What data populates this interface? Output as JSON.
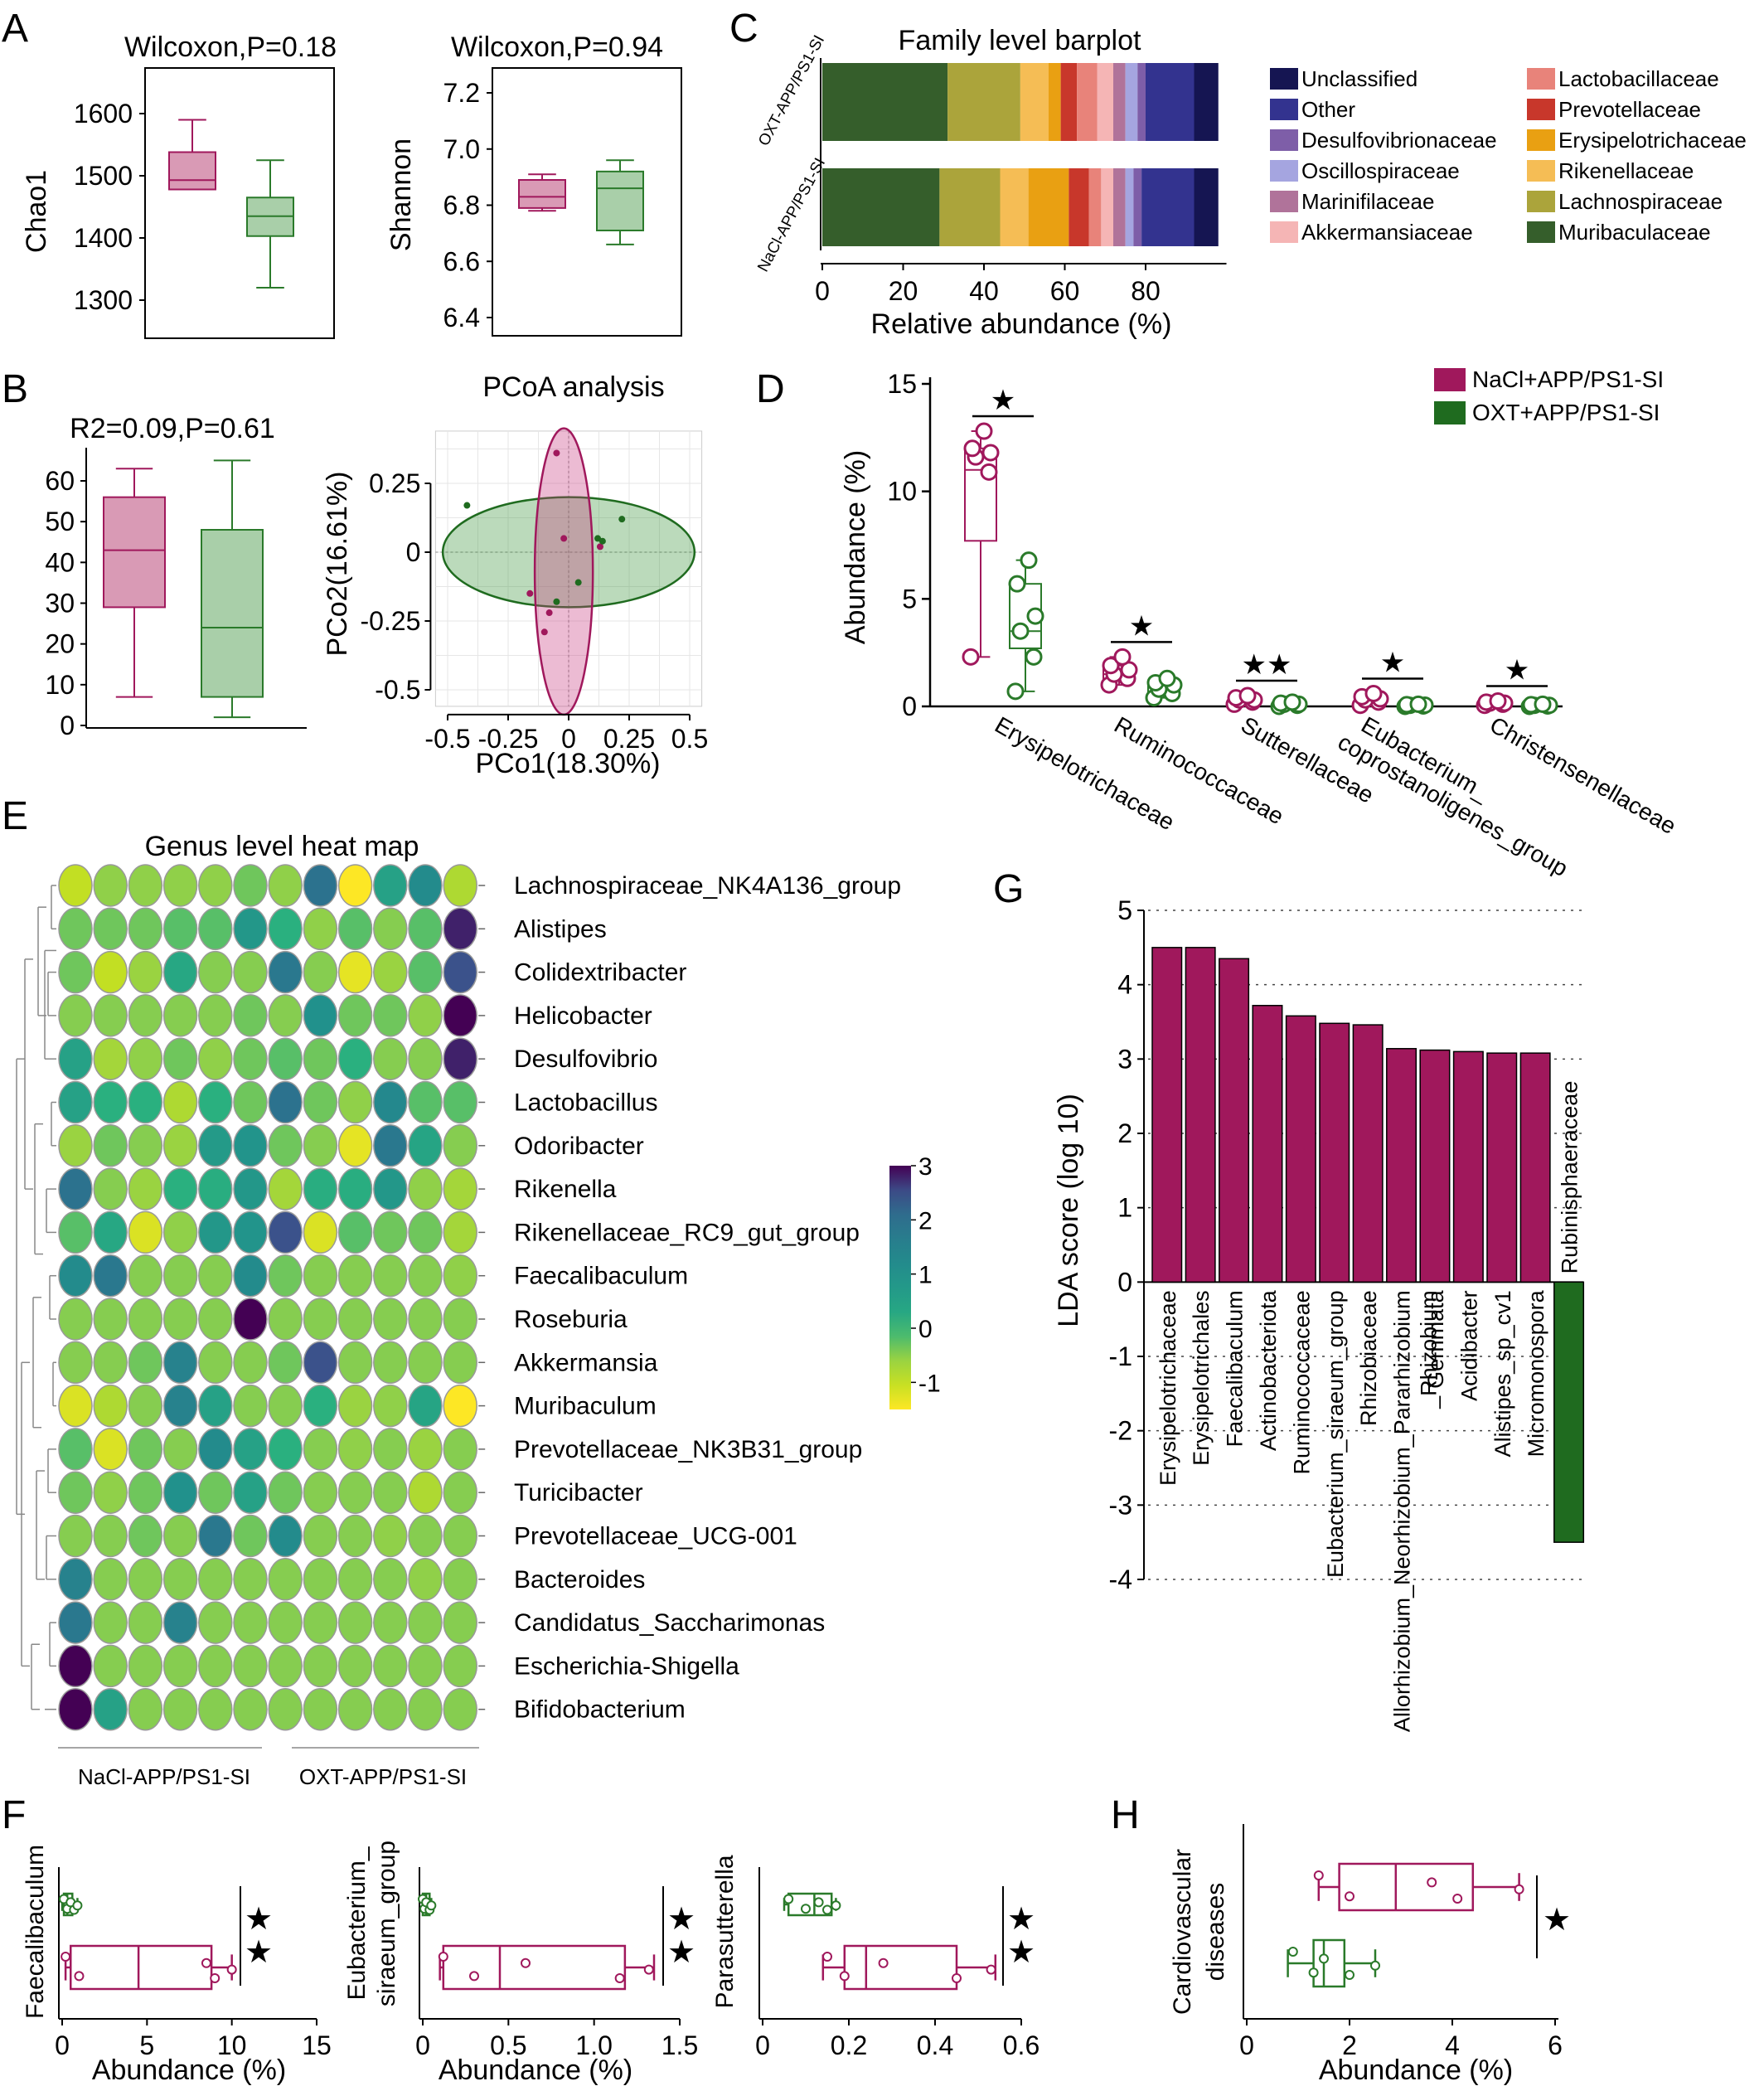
{
  "colors": {
    "nacl": "#a0185c",
    "nacl_fill": "#d99ab5",
    "oxt": "#2a7a2a",
    "oxt_fill": "#a9cfa9",
    "oxt_dark": "#1f6b1f"
  },
  "panelA": {
    "letter": "A",
    "chao1": {
      "title": "Wilcoxon,P=0.18",
      "ylabel": "Chao1",
      "ticks": [
        "1300",
        "1400",
        "1500",
        "1600"
      ],
      "ylim": [
        1250,
        1660
      ],
      "boxes": [
        {
          "group": "NaCl",
          "min": 1478,
          "q1": 1478,
          "median": 1493,
          "q3": 1538,
          "max": 1590
        },
        {
          "group": "OXT",
          "min": 1320,
          "q1": 1403,
          "median": 1435,
          "q3": 1465,
          "max": 1525
        }
      ]
    },
    "shannon": {
      "title": "Wilcoxon,P=0.94",
      "ylabel": "Shannon",
      "ticks": [
        "6.4",
        "6.6",
        "6.8",
        "7.0",
        "7.2"
      ],
      "ylim": [
        6.33,
        7.28
      ],
      "boxes": [
        {
          "group": "NaCl",
          "min": 6.78,
          "q1": 6.79,
          "median": 6.83,
          "q3": 6.89,
          "max": 6.91
        },
        {
          "group": "OXT",
          "min": 6.66,
          "q1": 6.71,
          "median": 6.86,
          "q3": 6.92,
          "max": 6.96
        }
      ]
    }
  },
  "panelB": {
    "letter": "B",
    "box": {
      "title": "R2=0.09,P=0.61",
      "ticks": [
        "0",
        "10",
        "20",
        "30",
        "40",
        "50",
        "60"
      ],
      "ylim": [
        0,
        68
      ],
      "boxes": [
        {
          "group": "NaCl",
          "min": 7,
          "q1": 29,
          "median": 43,
          "q3": 56,
          "max": 63
        },
        {
          "group": "OXT",
          "min": 2,
          "q1": 7,
          "median": 24,
          "q3": 48,
          "max": 65
        }
      ]
    },
    "pcoa": {
      "title": "PCoA analysis",
      "xlabel": "PCo1(18.30%)",
      "ylabel": "PCo2(16.61%)",
      "xticks": [
        "-0.5",
        "-0.25",
        "0",
        "0.25",
        "0.5"
      ],
      "yticks": [
        "0.25",
        "0",
        "-0.25",
        "-0.5"
      ],
      "xlim": [
        -0.55,
        0.55
      ],
      "ylim": [
        -0.56,
        0.44
      ],
      "nacl_points": [
        [
          -0.05,
          0.36
        ],
        [
          -0.02,
          0.05
        ],
        [
          0.13,
          0.02
        ],
        [
          -0.16,
          -0.15
        ],
        [
          -0.08,
          -0.22
        ],
        [
          -0.1,
          -0.29
        ]
      ],
      "oxt_points": [
        [
          -0.42,
          0.17
        ],
        [
          0.22,
          0.12
        ],
        [
          0.12,
          0.05
        ],
        [
          0.14,
          0.04
        ],
        [
          0.04,
          -0.11
        ],
        [
          -0.05,
          -0.18
        ]
      ]
    }
  },
  "panelC": {
    "letter": "C",
    "chart_data": {
      "type": "bar",
      "title": "Family level barplot",
      "xlabel": "Relative abundance (%)",
      "xticks": [
        "0",
        "20",
        "40",
        "60",
        "80"
      ],
      "xlim": [
        0,
        100
      ],
      "categories": [
        "OXT-APP/PS1-SI",
        "NaCl-APP/PS1-SI"
      ],
      "series": [
        {
          "name": "Muribaculaceae",
          "color": "#355e2b",
          "values": [
            31,
            29
          ]
        },
        {
          "name": "Lachnospiraceae",
          "color": "#aba43b",
          "values": [
            18,
            15
          ]
        },
        {
          "name": "Rikenellaceae",
          "color": "#f5bd55",
          "values": [
            7,
            7
          ]
        },
        {
          "name": "Erysipelotrichaceae",
          "color": "#e9a012",
          "values": [
            3,
            10
          ]
        },
        {
          "name": "Prevotellaceae",
          "color": "#c8372b",
          "values": [
            4,
            5
          ]
        },
        {
          "name": "Lactobacillaceae",
          "color": "#e8837a",
          "values": [
            5,
            3
          ]
        },
        {
          "name": "Akkermansiaceae",
          "color": "#f5b5b5",
          "values": [
            4,
            3
          ]
        },
        {
          "name": "Marinifilaceae",
          "color": "#b0739a",
          "values": [
            3,
            3
          ]
        },
        {
          "name": "Oscillospiraceae",
          "color": "#a5a5e0",
          "values": [
            3,
            2
          ]
        },
        {
          "name": "Desulfovibrionaceae",
          "color": "#7e5ea8",
          "values": [
            2,
            2
          ]
        },
        {
          "name": "Other",
          "color": "#33338f",
          "values": [
            12,
            13
          ]
        },
        {
          "name": "Unclassified",
          "color": "#151552",
          "values": [
            6,
            6
          ]
        }
      ]
    },
    "legend_col1": [
      "Unclassified",
      "Other",
      "Desulfovibrionaceae",
      "Oscillospiraceae",
      "Marinifilaceae",
      "Akkermansiaceae"
    ],
    "legend_col2": [
      "Lactobacillaceae",
      "Prevotellaceae",
      "Erysipelotrichaceae",
      "Rikenellaceae",
      "Lachnospiraceae",
      "Muribaculaceae"
    ]
  },
  "panelD": {
    "letter": "D",
    "ylabel": "Abundance (%)",
    "ticks": [
      "0",
      "5",
      "10",
      "15"
    ],
    "ylim": [
      0,
      15
    ],
    "legend": [
      "NaCl+APP/PS1-SI",
      "OXT+APP/PS1-SI"
    ],
    "groups": [
      {
        "label": "Erysipelotrichaceae",
        "sig": "★",
        "nacl": {
          "min": 2.3,
          "q1": 7.7,
          "median": 11.0,
          "q3": 12.0,
          "max": 12.8,
          "points": [
            2.3,
            10.9,
            11.6,
            11.8,
            12.0,
            12.8
          ]
        },
        "oxt": {
          "min": 0.7,
          "q1": 2.7,
          "median": 3.5,
          "q3": 5.7,
          "max": 6.8,
          "points": [
            0.7,
            2.3,
            3.5,
            4.2,
            5.7,
            6.8
          ]
        }
      },
      {
        "label": "Ruminococcaceae",
        "sig": "★",
        "nacl": {
          "min": 1.0,
          "q1": 1.2,
          "median": 1.5,
          "q3": 1.9,
          "max": 2.3,
          "points": [
            1.0,
            1.3,
            1.5,
            1.7,
            1.9,
            2.3
          ]
        },
        "oxt": {
          "min": 0.4,
          "q1": 0.6,
          "median": 0.9,
          "q3": 1.0,
          "max": 1.3,
          "points": [
            0.4,
            0.6,
            0.8,
            1.0,
            1.1,
            1.3
          ]
        }
      },
      {
        "label": "Sutterellaceae",
        "sig": "★★",
        "nacl": {
          "min": 0.1,
          "q1": 0.2,
          "median": 0.3,
          "q3": 0.4,
          "max": 0.5,
          "points": [
            0.1,
            0.2,
            0.3,
            0.3,
            0.4,
            0.5
          ]
        },
        "oxt": {
          "min": 0.0,
          "q1": 0.05,
          "median": 0.1,
          "q3": 0.15,
          "max": 0.2,
          "points": [
            0.0,
            0.05,
            0.1,
            0.1,
            0.15,
            0.2
          ]
        }
      },
      {
        "label": "Eubacterium_ coprostanoligenes_group",
        "sig": "★",
        "nacl": {
          "min": 0.05,
          "q1": 0.2,
          "median": 0.3,
          "q3": 0.45,
          "max": 0.6,
          "points": [
            0.05,
            0.2,
            0.3,
            0.35,
            0.45,
            0.6
          ]
        },
        "oxt": {
          "min": 0.0,
          "q1": 0.02,
          "median": 0.05,
          "q3": 0.08,
          "max": 0.1,
          "points": [
            0.0,
            0.02,
            0.05,
            0.06,
            0.08,
            0.1
          ]
        }
      },
      {
        "label": "Christensenellaceae",
        "sig": "★",
        "nacl": {
          "min": 0.05,
          "q1": 0.1,
          "median": 0.15,
          "q3": 0.2,
          "max": 0.25,
          "points": [
            0.05,
            0.1,
            0.15,
            0.15,
            0.2,
            0.25
          ]
        },
        "oxt": {
          "min": 0.0,
          "q1": 0.02,
          "median": 0.05,
          "q3": 0.08,
          "max": 0.1,
          "points": [
            0.0,
            0.02,
            0.05,
            0.05,
            0.08,
            0.1
          ]
        }
      }
    ]
  },
  "panelE": {
    "letter": "E",
    "title": "Genus level heat map",
    "group_labels": [
      "NaCl-APP/PS1-SI",
      "OXT-APP/PS1-SI"
    ],
    "scale_ticks": [
      "3",
      "2",
      "1",
      "0",
      "-1"
    ],
    "scale_range": [
      -1.5,
      3
    ],
    "rows": [
      "Lachnospiraceae_NK4A136_group",
      "Alistipes",
      "Colidextribacter",
      "Helicobacter",
      "Desulfovibrio",
      "Lactobacillus",
      "Odoribacter",
      "Rikenella",
      "Rikenellaceae_RC9_gut_group",
      "Faecalibaculum",
      "Roseburia",
      "Akkermansia",
      "Muribaculum",
      "Prevotellaceae_NK3B31_group",
      "Turicibacter",
      "Prevotellaceae_UCG-001",
      "Bacteroides",
      "Candidatus_Saccharimonas",
      "Escherichia-Shigella",
      "Bifidobacterium"
    ],
    "values": [
      [
        -1,
        -0.5,
        -0.5,
        -0.5,
        -0.5,
        -0.3,
        -0.5,
        2.0,
        -1.5,
        0.5,
        1.2,
        -0.8
      ],
      [
        -0.3,
        -0.3,
        -0.3,
        -0.2,
        -0.2,
        0.8,
        0.0,
        -0.5,
        -0.2,
        -0.4,
        -0.2,
        2.8
      ],
      [
        -0.3,
        -1.0,
        -0.6,
        0.3,
        -0.4,
        -0.4,
        1.8,
        -0.4,
        -1.3,
        -0.6,
        -0.2,
        2.5
      ],
      [
        -0.4,
        -0.4,
        -0.4,
        -0.4,
        -0.4,
        -0.3,
        -0.4,
        1.0,
        -0.3,
        -0.3,
        -0.5,
        3.0
      ],
      [
        0.5,
        -0.7,
        -0.5,
        -0.3,
        -0.5,
        -0.3,
        -0.2,
        -0.3,
        0.0,
        -0.4,
        -0.4,
        2.8
      ],
      [
        0.5,
        0.0,
        0.0,
        -0.8,
        0.0,
        -0.3,
        2.0,
        -0.3,
        -0.5,
        1.3,
        -0.2,
        -0.2
      ],
      [
        -0.6,
        -0.3,
        -0.4,
        -0.6,
        0.7,
        0.9,
        -0.3,
        -0.4,
        -1.3,
        1.8,
        0.4,
        -0.4
      ],
      [
        2.0,
        -0.4,
        -0.6,
        0.0,
        0.1,
        0.8,
        -0.7,
        0.1,
        0.1,
        0.8,
        -0.5,
        -0.7
      ],
      [
        -0.2,
        0.3,
        -1.2,
        -0.5,
        0.8,
        0.9,
        2.5,
        -1.2,
        -0.2,
        -0.3,
        -0.3,
        -0.7
      ],
      [
        1.2,
        1.8,
        -0.4,
        -0.4,
        -0.4,
        1.2,
        -0.3,
        -0.4,
        -0.4,
        -0.4,
        -0.4,
        -0.5
      ],
      [
        -0.4,
        -0.4,
        -0.4,
        -0.4,
        -0.4,
        3.0,
        -0.4,
        -0.4,
        -0.4,
        -0.4,
        -0.4,
        -0.4
      ],
      [
        -0.4,
        -0.4,
        -0.3,
        1.5,
        -0.4,
        -0.4,
        -0.3,
        2.5,
        -0.4,
        -0.4,
        -0.4,
        -0.4
      ],
      [
        -1.2,
        -0.8,
        -0.4,
        1.5,
        0.5,
        -0.4,
        -0.4,
        0.0,
        -0.6,
        -0.5,
        0.4,
        -1.5
      ],
      [
        -0.2,
        -1.2,
        -0.3,
        -0.4,
        1.2,
        0.5,
        0.0,
        -0.4,
        -0.5,
        -0.4,
        -0.6,
        -0.4
      ],
      [
        -0.3,
        -0.5,
        -0.3,
        1.0,
        -0.3,
        0.5,
        -0.3,
        -0.4,
        -0.4,
        -0.4,
        -0.8,
        -0.4
      ],
      [
        -0.4,
        -0.4,
        -0.3,
        -0.4,
        1.8,
        -0.3,
        1.2,
        -0.4,
        -0.4,
        -0.5,
        -0.4,
        -0.4
      ],
      [
        1.5,
        -0.4,
        -0.4,
        -0.4,
        -0.4,
        -0.4,
        -0.4,
        -0.4,
        -0.4,
        -0.4,
        -0.5,
        -0.4
      ],
      [
        1.8,
        -0.4,
        -0.4,
        1.5,
        -0.4,
        -0.4,
        -0.4,
        -0.4,
        -0.4,
        -0.4,
        -0.4,
        -0.4
      ],
      [
        3.0,
        -0.4,
        -0.4,
        -0.4,
        -0.4,
        -0.4,
        -0.4,
        -0.4,
        -0.4,
        -0.4,
        -0.4,
        -0.4
      ],
      [
        3.0,
        0.5,
        -0.4,
        -0.4,
        -0.4,
        -0.4,
        -0.4,
        -0.4,
        -0.4,
        -0.4,
        -0.4,
        -0.4
      ]
    ]
  },
  "panelF": {
    "letter": "F",
    "xlabel": "Abundance (%)",
    "plots": [
      {
        "ylabel1": "Faecalibaculum",
        "ylabel2": "",
        "ticks": [
          "0",
          "5",
          "10",
          "15"
        ],
        "xlim": [
          0,
          15
        ],
        "sig": "★★",
        "oxt": {
          "min": 0,
          "q1": 0.1,
          "median": 0.3,
          "q3": 0.6,
          "max": 0.9,
          "points": [
            0.1,
            0.3,
            0.5,
            0.7,
            0.9
          ]
        },
        "nacl": {
          "min": 0.2,
          "q1": 0.5,
          "median": 4.5,
          "q3": 8.8,
          "max": 10,
          "points": [
            0.2,
            1.0,
            8.5,
            9.0,
            10
          ]
        }
      },
      {
        "ylabel1": "Eubacterium_",
        "ylabel2": "siraeum_group",
        "ticks": [
          "0",
          "0.5",
          "1.0",
          "1.5"
        ],
        "xlim": [
          0,
          1.5
        ],
        "sig": "★★",
        "oxt": {
          "min": 0,
          "q1": 0.0,
          "median": 0.02,
          "q3": 0.04,
          "max": 0.05,
          "points": [
            0.0,
            0.01,
            0.02,
            0.04,
            0.05
          ]
        },
        "nacl": {
          "min": 0.1,
          "q1": 0.12,
          "median": 0.45,
          "q3": 1.18,
          "max": 1.35,
          "points": [
            0.12,
            0.3,
            0.6,
            1.15,
            1.32
          ]
        }
      },
      {
        "ylabel1": "Parasutterella",
        "ylabel2": "",
        "ticks": [
          "0",
          "0.2",
          "0.4",
          "0.6"
        ],
        "xlim": [
          0,
          0.6
        ],
        "sig": "★★",
        "oxt": {
          "min": 0.05,
          "q1": 0.06,
          "median": 0.12,
          "q3": 0.16,
          "max": 0.17,
          "points": [
            0.06,
            0.1,
            0.13,
            0.15,
            0.17
          ]
        },
        "nacl": {
          "min": 0.14,
          "q1": 0.19,
          "median": 0.24,
          "q3": 0.45,
          "max": 0.54,
          "points": [
            0.15,
            0.19,
            0.28,
            0.45,
            0.53
          ]
        }
      }
    ]
  },
  "panelG": {
    "letter": "G",
    "chart_data": {
      "type": "bar",
      "ylabel": "LDA score (log 10)",
      "ylim": [
        -4,
        5
      ],
      "yticks": [
        "5",
        "4",
        "3",
        "2",
        "1",
        "0",
        "-1",
        "-2",
        "-3",
        "-4"
      ],
      "categories": [
        "Erysipelotrichaceae",
        "Erysipelotrichales",
        "Faecalibaculum",
        "Actinobacteriota",
        "Ruminococcaceae",
        "Eubacterium_siraeum_group",
        "Rhizobiaceae",
        "Allorhizobium_Neorhizobium_Pararhizobium _Rhizobium",
        "Gemmata",
        "Acidibacter",
        "Alistipes_sp_cv1",
        "Micromonospora",
        "Rubinisphaeraceae"
      ],
      "values": [
        4.5,
        4.5,
        4.35,
        3.72,
        3.58,
        3.48,
        3.46,
        3.14,
        3.12,
        3.1,
        3.08,
        3.08,
        -3.5
      ]
    }
  },
  "panelH": {
    "letter": "H",
    "ylabel1": "Cardiovascular",
    "ylabel2": "diseases",
    "xlabel": "Abundance (%)",
    "ticks": [
      "0",
      "2",
      "4",
      "6"
    ],
    "xlim": [
      0,
      6
    ],
    "sig": "★",
    "nacl": {
      "min": 1.4,
      "q1": 1.8,
      "median": 2.9,
      "q3": 4.4,
      "max": 5.3,
      "points": [
        1.4,
        2.0,
        3.6,
        4.1,
        5.3
      ]
    },
    "oxt": {
      "min": 0.8,
      "q1": 1.3,
      "median": 1.5,
      "q3": 1.9,
      "max": 2.5,
      "points": [
        0.9,
        1.3,
        1.5,
        2.0,
        2.5
      ]
    }
  }
}
